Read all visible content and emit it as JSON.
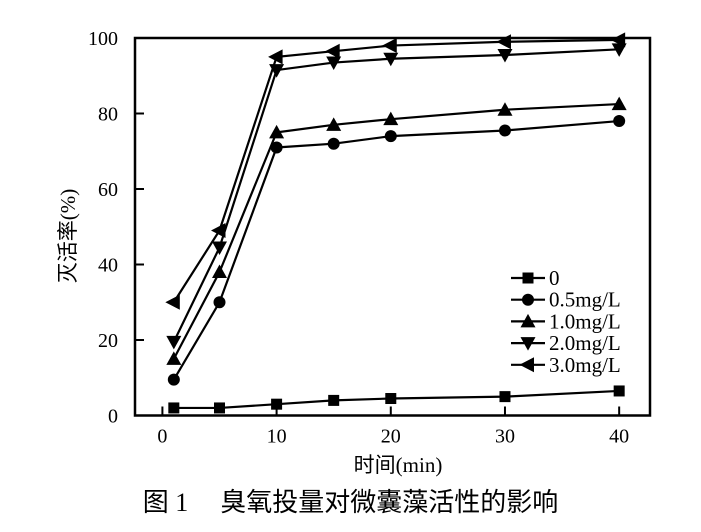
{
  "figure": {
    "caption_label": "图 1",
    "caption_title": "臭氧投量对微囊藻活性的影响"
  },
  "chart_data": {
    "type": "line",
    "title": "图 1 臭氧投量对微囊藻活性的影响",
    "xlabel": "时间(min)",
    "ylabel": "灭活率(%)",
    "x": [
      1,
      5,
      10,
      15,
      20,
      30,
      40
    ],
    "series": [
      {
        "name": "0",
        "marker": "square",
        "values": [
          2,
          2,
          3,
          4,
          4.5,
          5,
          6.5
        ]
      },
      {
        "name": "0.5mg/L",
        "marker": "circle",
        "values": [
          9.5,
          30,
          71,
          72,
          74,
          75.5,
          78
        ]
      },
      {
        "name": "1.0mg/L",
        "marker": "triangle-up",
        "values": [
          15,
          38,
          75,
          77,
          78.5,
          81,
          82.5
        ]
      },
      {
        "name": "2.0mg/L",
        "marker": "triangle-down",
        "values": [
          19.5,
          44.5,
          91.5,
          93.5,
          94.5,
          95.5,
          97
        ]
      },
      {
        "name": "3.0mg/L",
        "marker": "triangle-left",
        "values": [
          30,
          49,
          95,
          96.5,
          98,
          99,
          99.5
        ]
      }
    ],
    "x_ticks": [
      0,
      10,
      20,
      30,
      40
    ],
    "y_ticks": [
      0,
      20,
      40,
      60,
      80,
      100
    ],
    "xlim": [
      -2.4,
      42.7
    ],
    "ylim": [
      0,
      100
    ],
    "grid": false,
    "legend_position": "inside-bottom-right",
    "line_color": "#000000",
    "background": "#ffffff"
  }
}
